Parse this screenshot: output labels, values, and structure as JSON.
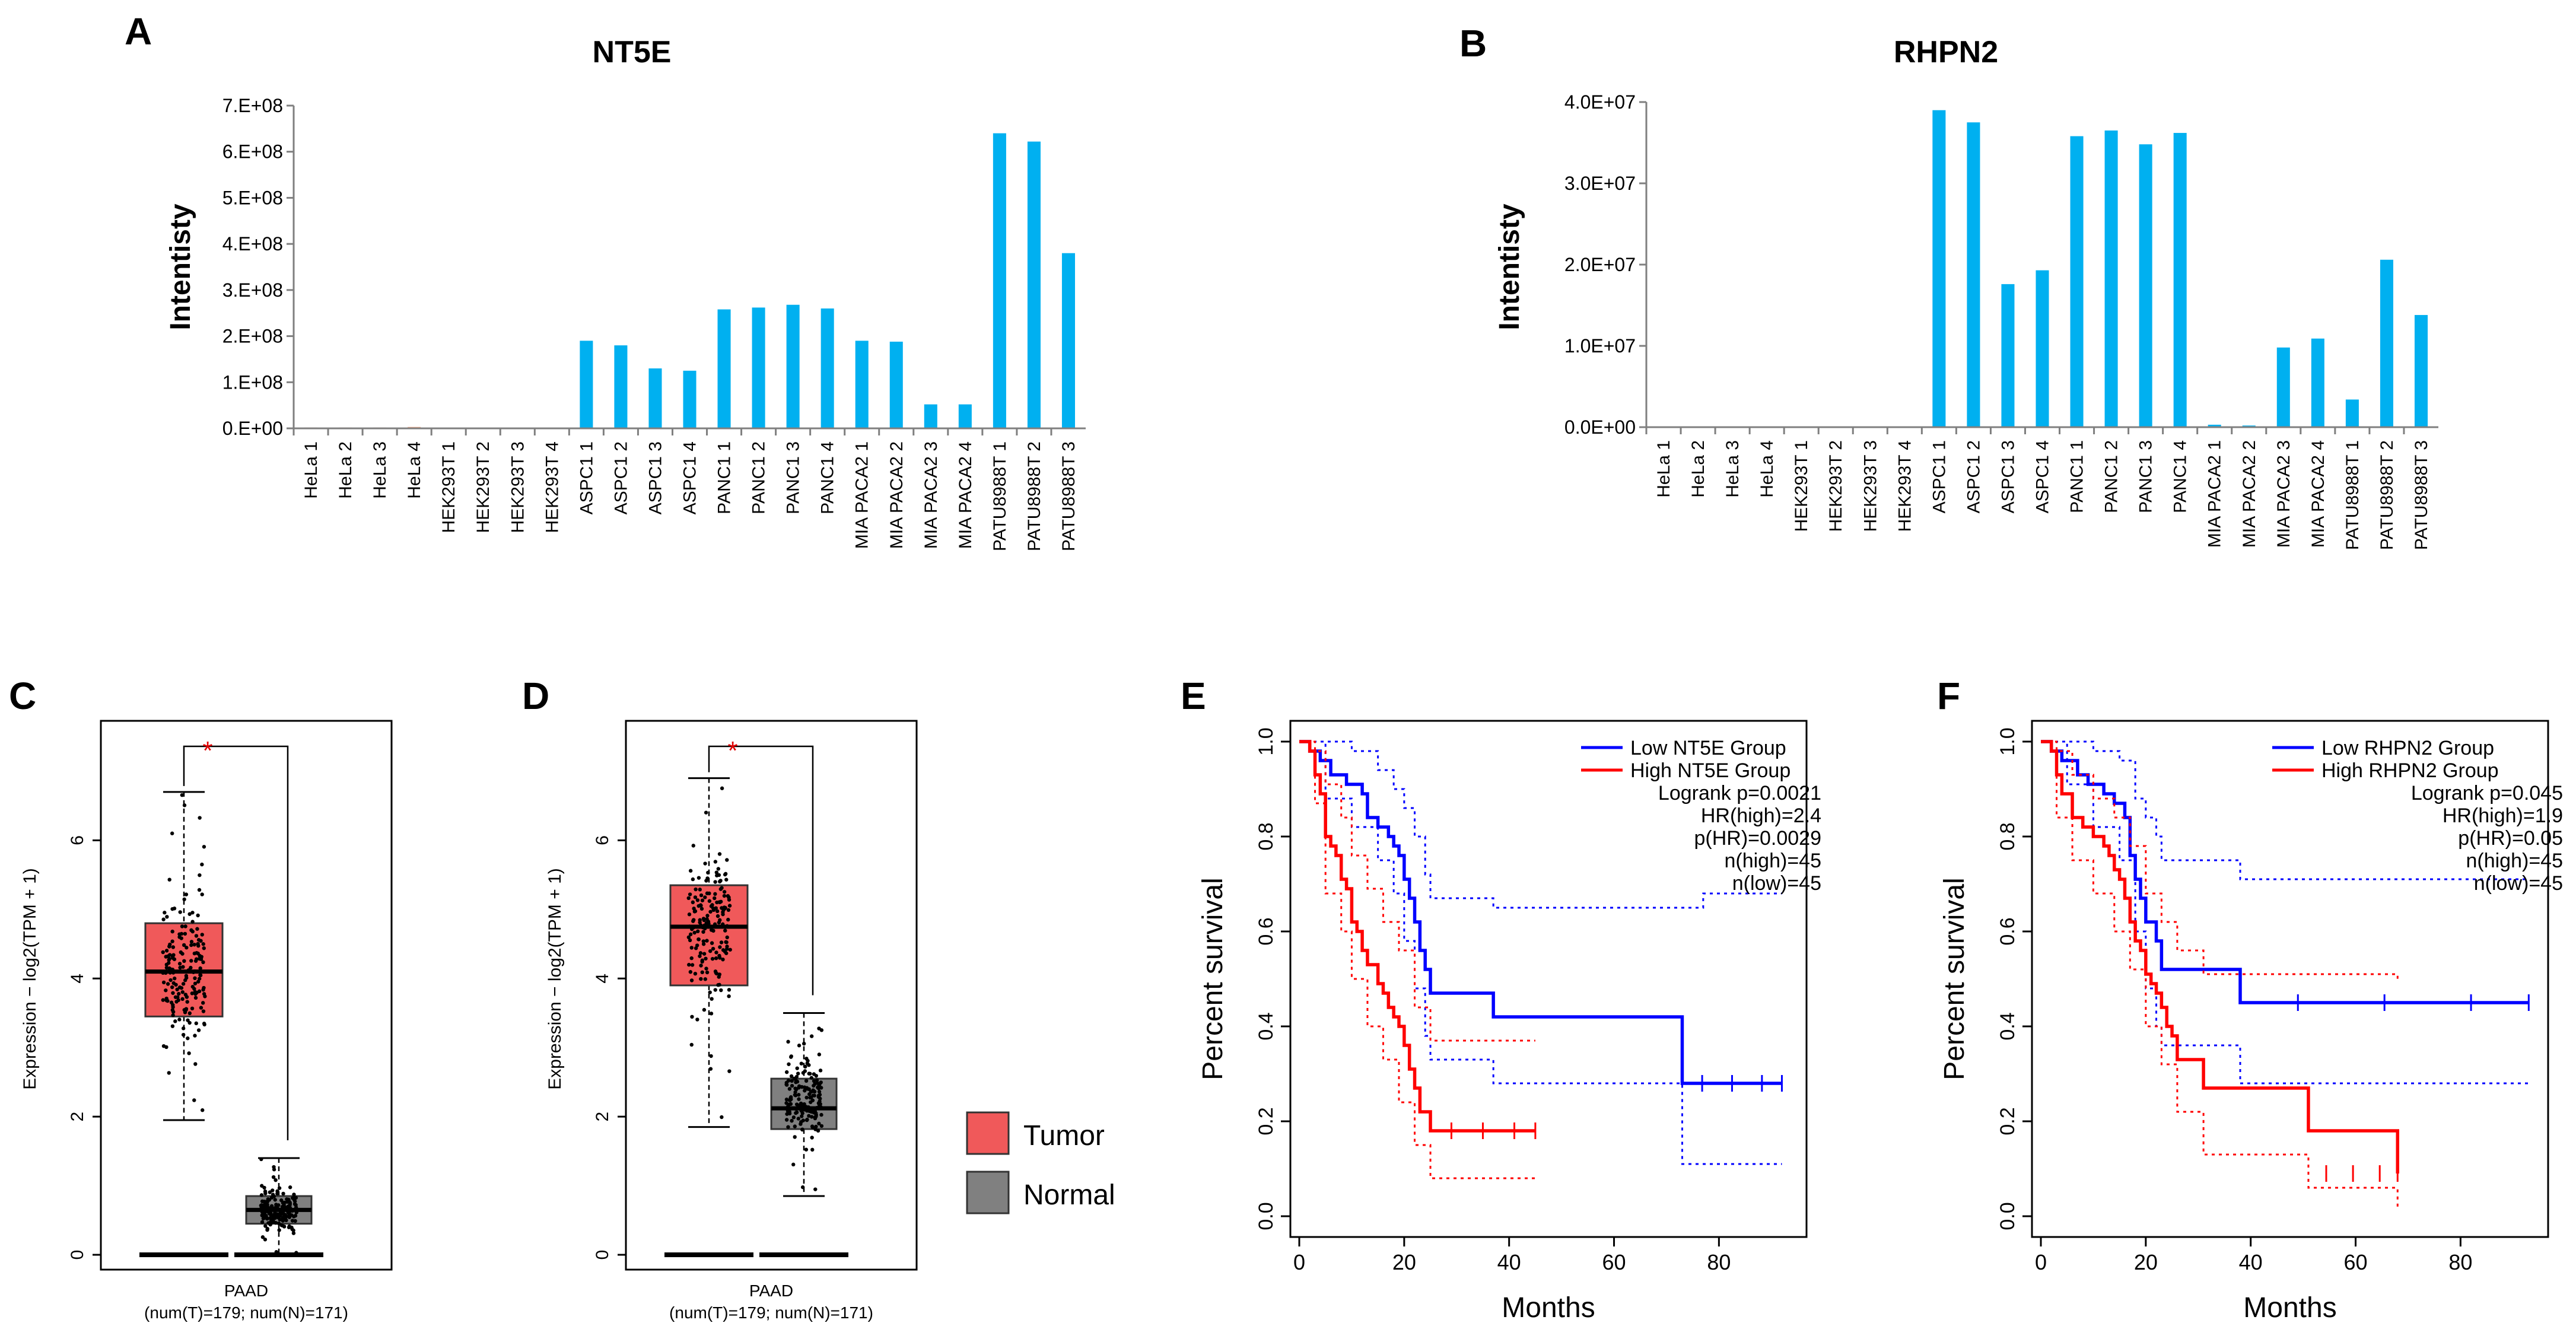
{
  "chart_data": [
    {
      "id": "A",
      "type": "bar",
      "panel_label": "A",
      "title": "NT5E",
      "ylabel": "Intentisty",
      "ylim": [
        0,
        700000000
      ],
      "yticks": [
        "0.E+00",
        "1.E+08",
        "2.E+08",
        "3.E+08",
        "4.E+08",
        "5.E+08",
        "6.E+08",
        "7.E+08"
      ],
      "categories": [
        "HeLa 1",
        "HeLa 2",
        "HeLa 3",
        "HeLa 4",
        "HEK293T 1",
        "HEK293T 2",
        "HEK293T 3",
        "HEK293T 4",
        "ASPC1 1",
        "ASPC1 2",
        "ASPC1 3",
        "ASPC1 4",
        "PANC1 1",
        "PANC1 2",
        "PANC1 3",
        "PANC1 4",
        "MIA PACA2 1",
        "MIA PACA2 2",
        "MIA PACA2 3",
        "MIA PACA2 4",
        "PATU8988T 1",
        "PATU8988T 2",
        "PATU8988T 3"
      ],
      "values": [
        2000000,
        2000000,
        2000000,
        3000000,
        500000,
        500000,
        1000000,
        500000,
        190000000,
        180000000,
        130000000,
        125000000,
        258000000,
        262000000,
        268000000,
        260000000,
        190000000,
        188000000,
        52000000,
        52000000,
        640000000,
        622000000,
        380000000
      ],
      "colors": [
        "#f3a582",
        "#f3a582",
        "#f3a582",
        "#f3a582",
        "#f3a582",
        "#f3a582",
        "#f3a582",
        "#f3a582",
        "#00b0f0",
        "#00b0f0",
        "#00b0f0",
        "#00b0f0",
        "#00b0f0",
        "#00b0f0",
        "#00b0f0",
        "#00b0f0",
        "#00b0f0",
        "#00b0f0",
        "#00b0f0",
        "#00b0f0",
        "#00b0f0",
        "#00b0f0",
        "#00b0f0"
      ]
    },
    {
      "id": "B",
      "type": "bar",
      "panel_label": "B",
      "title": "RHPN2",
      "ylabel": "Intentisty",
      "ylim": [
        0,
        40000000
      ],
      "yticks": [
        "0.0E+00",
        "1.0E+07",
        "2.0E+07",
        "3.0E+07",
        "4.0E+07"
      ],
      "categories": [
        "HeLa 1",
        "HeLa 2",
        "HeLa 3",
        "HeLa 4",
        "HEK293T 1",
        "HEK293T 2",
        "HEK293T 3",
        "HEK293T 4",
        "ASPC1 1",
        "ASPC1 2",
        "ASPC1 3",
        "ASPC1 4",
        "PANC1 1",
        "PANC1 2",
        "PANC1 3",
        "PANC1 4",
        "MIA PACA2 1",
        "MIA PACA2 2",
        "MIA PACA2 3",
        "MIA PACA2 4",
        "PATU8988T 1",
        "PATU8988T 2",
        "PATU8988T 3"
      ],
      "values": [
        0,
        0,
        0,
        0,
        0,
        0,
        0,
        0,
        39000000,
        37500000,
        17600000,
        19300000,
        35800000,
        36500000,
        34800000,
        36200000,
        300000,
        200000,
        9800000,
        10900000,
        3400000,
        20600000,
        13800000
      ],
      "colors": [
        "#00b0f0"
      ]
    },
    {
      "id": "C",
      "type": "box",
      "panel_label": "C",
      "ylabel": "Expression − log2(TPM + 1)",
      "ylim": [
        0,
        7.5
      ],
      "yticks": [
        0,
        2,
        4,
        6
      ],
      "xlabel": "PAAD",
      "xsub": "(num(T)=179; num(N)=171)",
      "significance": "*",
      "series": [
        {
          "name": "Tumor",
          "color": "#f0595a",
          "q1": 3.45,
          "median": 4.1,
          "q3": 4.8,
          "whisker_low": 1.95,
          "whisker_high": 6.7,
          "n": 179
        },
        {
          "name": "Normal",
          "color": "#808080",
          "q1": 0.45,
          "median": 0.65,
          "q3": 0.85,
          "whisker_low": 0.0,
          "whisker_high": 1.4,
          "n": 171
        }
      ]
    },
    {
      "id": "D",
      "type": "box",
      "panel_label": "D",
      "ylabel": "Expression − log2(TPM + 1)",
      "ylim": [
        0,
        7.5
      ],
      "yticks": [
        0,
        2,
        4,
        6
      ],
      "xlabel": "PAAD",
      "xsub": "(num(T)=179; num(N)=171)",
      "significance": "*",
      "series": [
        {
          "name": "Tumor",
          "color": "#f0595a",
          "q1": 3.9,
          "median": 4.75,
          "q3": 5.35,
          "whisker_low": 1.85,
          "whisker_high": 6.9,
          "n": 179
        },
        {
          "name": "Normal",
          "color": "#808080",
          "q1": 1.82,
          "median": 2.12,
          "q3": 2.55,
          "whisker_low": 0.85,
          "whisker_high": 3.5,
          "n": 171
        }
      ]
    },
    {
      "id": "legend",
      "type": "legend",
      "entries": [
        {
          "label": "Tumor",
          "color": "#f0595a"
        },
        {
          "label": "Normal",
          "color": "#808080"
        }
      ]
    },
    {
      "id": "E",
      "type": "line",
      "subtype": "kaplan-meier",
      "panel_label": "E",
      "xlabel": "Months",
      "ylabel": "Percent survival",
      "xlim": [
        0,
        95
      ],
      "ylim": [
        0,
        1.0
      ],
      "xticks": [
        0,
        20,
        40,
        60,
        80
      ],
      "yticks": [
        "0.0",
        "0.2",
        "0.4",
        "0.6",
        "0.8",
        "1.0"
      ],
      "legend": [
        "Low NT5E Group",
        "High NT5E Group"
      ],
      "stats": [
        "Logrank p=0.0021",
        "HR(high)=2.4",
        "p(HR)=0.0029",
        "n(high)=45",
        "n(low)=45"
      ],
      "series": [
        {
          "name": "Low NT5E Group",
          "color": "#0000ff",
          "points": [
            [
              0,
              1.0
            ],
            [
              2,
              0.98
            ],
            [
              4,
              0.96
            ],
            [
              6,
              0.93
            ],
            [
              9,
              0.91
            ],
            [
              12,
              0.89
            ],
            [
              13,
              0.84
            ],
            [
              15,
              0.82
            ],
            [
              17,
              0.8
            ],
            [
              18,
              0.78
            ],
            [
              19,
              0.76
            ],
            [
              20,
              0.71
            ],
            [
              21,
              0.67
            ],
            [
              22,
              0.62
            ],
            [
              23,
              0.56
            ],
            [
              24,
              0.52
            ],
            [
              25,
              0.47
            ],
            [
              37,
              0.42
            ],
            [
              73,
              0.28
            ],
            [
              92,
              0.28
            ]
          ],
          "upper": [
            [
              0,
              1.0
            ],
            [
              5,
              1.0
            ],
            [
              10,
              0.98
            ],
            [
              15,
              0.94
            ],
            [
              18,
              0.9
            ],
            [
              20,
              0.86
            ],
            [
              22,
              0.8
            ],
            [
              24,
              0.72
            ],
            [
              25,
              0.67
            ],
            [
              37,
              0.65
            ],
            [
              73,
              0.65
            ],
            [
              77,
              0.68
            ],
            [
              92,
              0.68
            ]
          ],
          "lower": [
            [
              0,
              1.0
            ],
            [
              5,
              0.88
            ],
            [
              10,
              0.82
            ],
            [
              15,
              0.75
            ],
            [
              18,
              0.68
            ],
            [
              20,
              0.58
            ],
            [
              22,
              0.48
            ],
            [
              24,
              0.38
            ],
            [
              25,
              0.33
            ],
            [
              37,
              0.28
            ],
            [
              73,
              0.11
            ],
            [
              92,
              0.11
            ]
          ]
        },
        {
          "name": "High NT5E Group",
          "color": "#ff0000",
          "points": [
            [
              0,
              1.0
            ],
            [
              2,
              0.98
            ],
            [
              3,
              0.93
            ],
            [
              4,
              0.89
            ],
            [
              5,
              0.8
            ],
            [
              6,
              0.78
            ],
            [
              7,
              0.76
            ],
            [
              8,
              0.71
            ],
            [
              9,
              0.69
            ],
            [
              10,
              0.62
            ],
            [
              11,
              0.6
            ],
            [
              12,
              0.56
            ],
            [
              13,
              0.53
            ],
            [
              15,
              0.49
            ],
            [
              16,
              0.47
            ],
            [
              17,
              0.44
            ],
            [
              18,
              0.42
            ],
            [
              19,
              0.4
            ],
            [
              20,
              0.36
            ],
            [
              21,
              0.31
            ],
            [
              22,
              0.27
            ],
            [
              23,
              0.22
            ],
            [
              25,
              0.18
            ],
            [
              45,
              0.18
            ]
          ],
          "upper": [
            [
              0,
              1.0
            ],
            [
              3,
              0.98
            ],
            [
              5,
              0.91
            ],
            [
              8,
              0.84
            ],
            [
              10,
              0.76
            ],
            [
              13,
              0.69
            ],
            [
              16,
              0.62
            ],
            [
              19,
              0.56
            ],
            [
              22,
              0.44
            ],
            [
              25,
              0.37
            ],
            [
              45,
              0.37
            ]
          ],
          "lower": [
            [
              0,
              1.0
            ],
            [
              3,
              0.87
            ],
            [
              5,
              0.68
            ],
            [
              8,
              0.6
            ],
            [
              10,
              0.5
            ],
            [
              13,
              0.4
            ],
            [
              16,
              0.33
            ],
            [
              19,
              0.24
            ],
            [
              22,
              0.15
            ],
            [
              25,
              0.08
            ],
            [
              45,
              0.08
            ]
          ]
        }
      ]
    },
    {
      "id": "F",
      "type": "line",
      "subtype": "kaplan-meier",
      "panel_label": "F",
      "xlabel": "Months",
      "ylabel": "Percent survival",
      "xlim": [
        0,
        95
      ],
      "ylim": [
        0,
        1.0
      ],
      "xticks": [
        0,
        20,
        40,
        60,
        80
      ],
      "yticks": [
        "0.0",
        "0.2",
        "0.4",
        "0.6",
        "0.8",
        "1.0"
      ],
      "legend": [
        "Low RHPN2 Group",
        "High RHPN2 Group"
      ],
      "stats": [
        "Logrank p=0.045",
        "HR(high)=1.9",
        "p(HR)=0.05",
        "n(high)=45",
        "n(low)=45"
      ],
      "series": [
        {
          "name": "Low RHPN2 Group",
          "color": "#0000ff",
          "points": [
            [
              0,
              1.0
            ],
            [
              2,
              0.98
            ],
            [
              4,
              0.96
            ],
            [
              7,
              0.93
            ],
            [
              9,
              0.91
            ],
            [
              12,
              0.89
            ],
            [
              14,
              0.87
            ],
            [
              16,
              0.84
            ],
            [
              17,
              0.76
            ],
            [
              18,
              0.71
            ],
            [
              19,
              0.67
            ],
            [
              20,
              0.62
            ],
            [
              22,
              0.58
            ],
            [
              23,
              0.52
            ],
            [
              38,
              0.45
            ],
            [
              93,
              0.45
            ]
          ],
          "upper": [
            [
              0,
              1.0
            ],
            [
              5,
              1.0
            ],
            [
              10,
              0.98
            ],
            [
              15,
              0.96
            ],
            [
              18,
              0.88
            ],
            [
              20,
              0.84
            ],
            [
              22,
              0.8
            ],
            [
              23,
              0.75
            ],
            [
              38,
              0.71
            ],
            [
              93,
              0.71
            ]
          ],
          "lower": [
            [
              0,
              1.0
            ],
            [
              5,
              0.91
            ],
            [
              10,
              0.82
            ],
            [
              15,
              0.75
            ],
            [
              18,
              0.6
            ],
            [
              20,
              0.48
            ],
            [
              22,
              0.4
            ],
            [
              23,
              0.36
            ],
            [
              38,
              0.28
            ],
            [
              93,
              0.28
            ]
          ]
        },
        {
          "name": "High RHPN2 Group",
          "color": "#ff0000",
          "points": [
            [
              0,
              1.0
            ],
            [
              2,
              0.98
            ],
            [
              3,
              0.93
            ],
            [
              4,
              0.89
            ],
            [
              6,
              0.84
            ],
            [
              8,
              0.82
            ],
            [
              10,
              0.8
            ],
            [
              12,
              0.78
            ],
            [
              13,
              0.76
            ],
            [
              14,
              0.73
            ],
            [
              15,
              0.71
            ],
            [
              16,
              0.67
            ],
            [
              17,
              0.62
            ],
            [
              18,
              0.58
            ],
            [
              19,
              0.56
            ],
            [
              20,
              0.51
            ],
            [
              21,
              0.49
            ],
            [
              22,
              0.47
            ],
            [
              23,
              0.44
            ],
            [
              24,
              0.4
            ],
            [
              25,
              0.38
            ],
            [
              26,
              0.33
            ],
            [
              31,
              0.27
            ],
            [
              51,
              0.18
            ],
            [
              68,
              0.09
            ]
          ],
          "upper": [
            [
              0,
              1.0
            ],
            [
              3,
              0.98
            ],
            [
              6,
              0.93
            ],
            [
              10,
              0.88
            ],
            [
              14,
              0.84
            ],
            [
              17,
              0.78
            ],
            [
              20,
              0.68
            ],
            [
              23,
              0.62
            ],
            [
              26,
              0.56
            ],
            [
              31,
              0.51
            ],
            [
              51,
              0.51
            ],
            [
              68,
              0.5
            ]
          ],
          "lower": [
            [
              0,
              1.0
            ],
            [
              3,
              0.84
            ],
            [
              6,
              0.75
            ],
            [
              10,
              0.68
            ],
            [
              14,
              0.6
            ],
            [
              17,
              0.52
            ],
            [
              20,
              0.4
            ],
            [
              23,
              0.32
            ],
            [
              26,
              0.22
            ],
            [
              31,
              0.13
            ],
            [
              51,
              0.06
            ],
            [
              68,
              0.02
            ]
          ]
        }
      ]
    }
  ]
}
